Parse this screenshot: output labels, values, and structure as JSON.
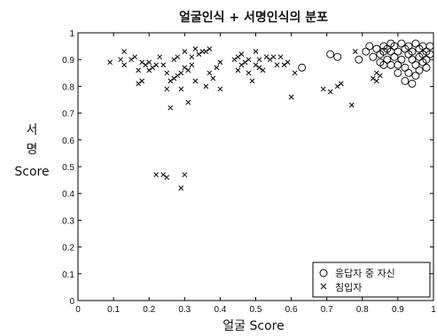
{
  "chart_data": {
    "type": "scatter",
    "title": "얼굴인식 + 서명인식의 분포",
    "xlabel": "얼굴 Score",
    "ylabel_lines": [
      "서",
      "명",
      "Score"
    ],
    "xlim": [
      0,
      1
    ],
    "ylim": [
      0,
      1
    ],
    "xticks": [
      "0",
      "0.1",
      "0.2",
      "0.3",
      "0.4",
      "0.5",
      "0.6",
      "0.7",
      "0.8",
      "0.9",
      "1"
    ],
    "yticks": [
      "0",
      "0.1",
      "0.2",
      "0.3",
      "0.4",
      "0.5",
      "0.6",
      "0.7",
      "0.8",
      "0.9",
      "1"
    ],
    "grid": false,
    "legend_position": "bottom-right",
    "series": [
      {
        "name": "응답자 중 자신",
        "marker": "circle",
        "points": [
          [
            0.63,
            0.87
          ],
          [
            0.71,
            0.92
          ],
          [
            0.73,
            0.91
          ],
          [
            0.79,
            0.9
          ],
          [
            0.81,
            0.93
          ],
          [
            0.82,
            0.95
          ],
          [
            0.83,
            0.91
          ],
          [
            0.84,
            0.94
          ],
          [
            0.85,
            0.92
          ],
          [
            0.85,
            0.89
          ],
          [
            0.86,
            0.95
          ],
          [
            0.86,
            0.93
          ],
          [
            0.87,
            0.9
          ],
          [
            0.87,
            0.94
          ],
          [
            0.88,
            0.96
          ],
          [
            0.88,
            0.93
          ],
          [
            0.89,
            0.91
          ],
          [
            0.89,
            0.95
          ],
          [
            0.9,
            0.93
          ],
          [
            0.9,
            0.88
          ],
          [
            0.91,
            0.96
          ],
          [
            0.91,
            0.9
          ],
          [
            0.92,
            0.94
          ],
          [
            0.92,
            0.87
          ],
          [
            0.93,
            0.92
          ],
          [
            0.93,
            0.85
          ],
          [
            0.93,
            0.95
          ],
          [
            0.94,
            0.9
          ],
          [
            0.94,
            0.93
          ],
          [
            0.95,
            0.96
          ],
          [
            0.95,
            0.88
          ],
          [
            0.95,
            0.84
          ],
          [
            0.96,
            0.94
          ],
          [
            0.96,
            0.91
          ],
          [
            0.96,
            0.86
          ],
          [
            0.97,
            0.95
          ],
          [
            0.97,
            0.89
          ],
          [
            0.97,
            0.92
          ],
          [
            0.98,
            0.93
          ],
          [
            0.98,
            0.87
          ],
          [
            0.98,
            0.9
          ],
          [
            0.99,
            0.95
          ],
          [
            0.99,
            0.92
          ],
          [
            0.92,
            0.82
          ],
          [
            0.94,
            0.81
          ],
          [
            0.9,
            0.85
          ],
          [
            0.88,
            0.88
          ],
          [
            0.86,
            0.88
          ]
        ]
      },
      {
        "name": "침입자",
        "marker": "x",
        "points": [
          [
            0.09,
            0.89
          ],
          [
            0.12,
            0.9
          ],
          [
            0.13,
            0.93
          ],
          [
            0.13,
            0.88
          ],
          [
            0.15,
            0.9
          ],
          [
            0.16,
            0.91
          ],
          [
            0.17,
            0.86
          ],
          [
            0.17,
            0.81
          ],
          [
            0.18,
            0.82
          ],
          [
            0.18,
            0.89
          ],
          [
            0.19,
            0.88
          ],
          [
            0.2,
            0.89
          ],
          [
            0.2,
            0.86
          ],
          [
            0.21,
            0.87
          ],
          [
            0.22,
            0.88
          ],
          [
            0.23,
            0.91
          ],
          [
            0.24,
            0.88
          ],
          [
            0.25,
            0.79
          ],
          [
            0.25,
            0.85
          ],
          [
            0.26,
            0.72
          ],
          [
            0.26,
            0.82
          ],
          [
            0.27,
            0.9
          ],
          [
            0.27,
            0.83
          ],
          [
            0.28,
            0.84
          ],
          [
            0.28,
            0.91
          ],
          [
            0.29,
            0.85
          ],
          [
            0.29,
            0.79
          ],
          [
            0.3,
            0.93
          ],
          [
            0.3,
            0.87
          ],
          [
            0.31,
            0.74
          ],
          [
            0.31,
            0.86
          ],
          [
            0.32,
            0.91
          ],
          [
            0.32,
            0.88
          ],
          [
            0.33,
            0.94
          ],
          [
            0.33,
            0.82
          ],
          [
            0.34,
            0.92
          ],
          [
            0.35,
            0.93
          ],
          [
            0.36,
            0.8
          ],
          [
            0.36,
            0.93
          ],
          [
            0.37,
            0.94
          ],
          [
            0.37,
            0.85
          ],
          [
            0.38,
            0.83
          ],
          [
            0.39,
            0.87
          ],
          [
            0.4,
            0.89
          ],
          [
            0.4,
            0.79
          ],
          [
            0.44,
            0.9
          ],
          [
            0.45,
            0.86
          ],
          [
            0.45,
            0.91
          ],
          [
            0.46,
            0.88
          ],
          [
            0.46,
            0.92
          ],
          [
            0.47,
            0.89
          ],
          [
            0.48,
            0.85
          ],
          [
            0.48,
            0.9
          ],
          [
            0.49,
            0.82
          ],
          [
            0.5,
            0.88
          ],
          [
            0.5,
            0.93
          ],
          [
            0.51,
            0.9
          ],
          [
            0.51,
            0.87
          ],
          [
            0.52,
            0.86
          ],
          [
            0.53,
            0.91
          ],
          [
            0.54,
            0.9
          ],
          [
            0.55,
            0.91
          ],
          [
            0.56,
            0.88
          ],
          [
            0.57,
            0.91
          ],
          [
            0.58,
            0.88
          ],
          [
            0.59,
            0.89
          ],
          [
            0.6,
            0.76
          ],
          [
            0.61,
            0.85
          ],
          [
            0.69,
            0.79
          ],
          [
            0.71,
            0.78
          ],
          [
            0.73,
            0.8
          ],
          [
            0.74,
            0.81
          ],
          [
            0.77,
            0.73
          ],
          [
            0.78,
            0.93
          ],
          [
            0.83,
            0.83
          ],
          [
            0.84,
            0.85
          ],
          [
            0.84,
            0.82
          ],
          [
            0.85,
            0.84
          ],
          [
            0.22,
            0.47
          ],
          [
            0.24,
            0.47
          ],
          [
            0.25,
            0.46
          ],
          [
            0.29,
            0.42
          ],
          [
            0.3,
            0.47
          ]
        ]
      }
    ]
  }
}
